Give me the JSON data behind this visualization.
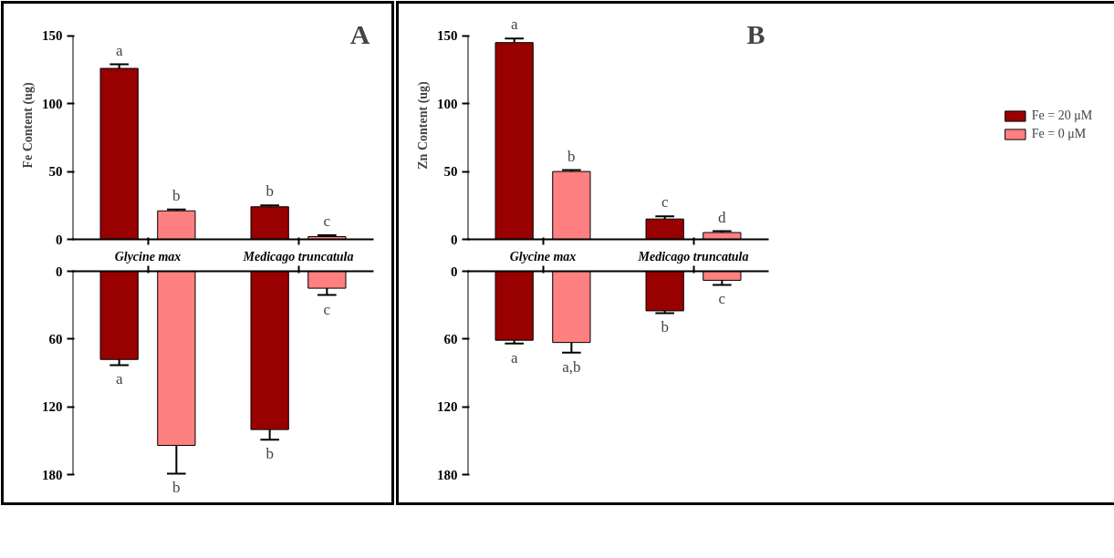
{
  "chart_data": [
    {
      "type": "bar",
      "categories": [
        "Glycine max",
        "Medicago truncatula"
      ],
      "ylabel": "Fe Content (ug)",
      "ylim": [
        0,
        150
      ],
      "yticks": [
        0,
        50,
        100,
        150
      ],
      "annotations": [
        "A"
      ],
      "series": [
        {
          "color": "#990000",
          "values": [
            126,
            24
          ],
          "errors": [
            [
              126,
              129
            ],
            [
              24,
              25
            ]
          ],
          "value_labels": [
            "a",
            "b"
          ]
        },
        {
          "color": "#ff8080",
          "values": [
            21,
            2
          ],
          "errors": [
            [
              21,
              22
            ],
            [
              2,
              3
            ]
          ],
          "value_labels": [
            "b",
            "c"
          ]
        }
      ]
    },
    {
      "type": "bar",
      "ylim": [
        180,
        0
      ],
      "yticks": [
        0,
        60,
        120,
        180
      ],
      "tick_labels": "y",
      "series": [
        {
          "color": "#990000",
          "values": [
            78,
            140
          ],
          "errors": [
            [
              78,
              83
            ],
            [
              140,
              149
            ]
          ],
          "value_labels": [
            "a",
            "b"
          ]
        },
        {
          "color": "#ff8080",
          "values": [
            154,
            15
          ],
          "errors": [
            [
              154,
              179
            ],
            [
              15,
              21
            ]
          ],
          "value_labels": [
            "b",
            "c"
          ]
        }
      ]
    },
    {
      "type": "bar",
      "categories": [
        "Glycine max",
        "Medicago truncatula"
      ],
      "ylabel": "Zn Content (ug)",
      "ylim": [
        0,
        150
      ],
      "yticks": [
        0,
        50,
        100,
        150
      ],
      "annotations": [
        "B"
      ],
      "legend": "right",
      "series": [
        {
          "name": "Fe = 20 μM",
          "color": "#990000",
          "values": [
            145,
            15
          ],
          "errors": [
            [
              145,
              148
            ],
            [
              15,
              17
            ]
          ],
          "value_labels": [
            "a",
            "c"
          ]
        },
        {
          "name": "Fe = 0 μM",
          "color": "#ff8080",
          "values": [
            50,
            5
          ],
          "errors": [
            [
              50,
              51
            ],
            [
              5,
              6
            ]
          ],
          "value_labels": [
            "b",
            "d"
          ]
        }
      ]
    },
    {
      "type": "bar",
      "ylim": [
        180,
        0
      ],
      "yticks": [
        0,
        60,
        120,
        180
      ],
      "tick_labels": "y",
      "series": [
        {
          "color": "#990000",
          "values": [
            61,
            35
          ],
          "errors": [
            [
              61,
              64
            ],
            [
              35,
              37
            ]
          ],
          "value_labels": [
            "a",
            "b"
          ]
        },
        {
          "color": "#ff8080",
          "values": [
            63,
            8
          ],
          "errors": [
            [
              63,
              72
            ],
            [
              8,
              12
            ]
          ],
          "value_labels": [
            "a,b",
            "c"
          ]
        }
      ]
    }
  ]
}
